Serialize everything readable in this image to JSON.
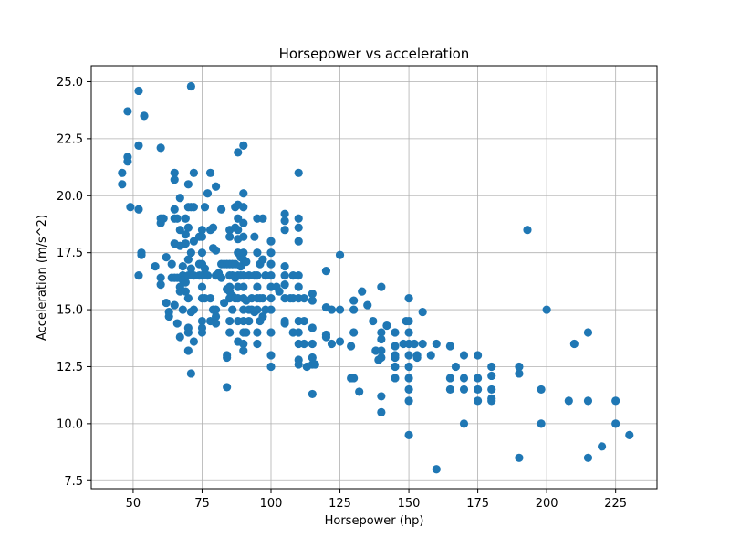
{
  "chart_data": {
    "type": "scatter",
    "title": "Horsepower vs acceleration",
    "xlabel": "Horsepower (hp)",
    "ylabel": "Acceleration (m/s^2)",
    "xlim": [
      34.8,
      240
    ],
    "ylim": [
      7.15,
      25.7
    ],
    "xticks": [
      50,
      75,
      100,
      125,
      150,
      175,
      200,
      225
    ],
    "yticks": [
      7.5,
      10.0,
      12.5,
      15.0,
      17.5,
      20.0,
      22.5,
      25.0
    ],
    "xtick_labels": [
      "50",
      "75",
      "100",
      "125",
      "150",
      "175",
      "200",
      "225"
    ],
    "ytick_labels": [
      "7.5",
      "10.0",
      "12.5",
      "15.0",
      "17.5",
      "20.0",
      "22.5",
      "25.0"
    ],
    "grid": true,
    "marker_color": "#1f77b4",
    "points": [
      [
        46,
        21.0
      ],
      [
        46,
        20.5
      ],
      [
        48,
        23.7
      ],
      [
        48,
        21.7
      ],
      [
        48,
        21.5
      ],
      [
        49,
        19.5
      ],
      [
        52,
        24.6
      ],
      [
        52,
        22.2
      ],
      [
        52,
        19.4
      ],
      [
        52,
        16.5
      ],
      [
        53,
        17.5
      ],
      [
        53,
        17.4
      ],
      [
        54,
        23.5
      ],
      [
        58,
        16.9
      ],
      [
        60,
        22.1
      ],
      [
        60,
        19.0
      ],
      [
        60,
        18.8
      ],
      [
        60,
        16.4
      ],
      [
        60,
        16.1
      ],
      [
        61,
        19.0
      ],
      [
        62,
        17.3
      ],
      [
        62,
        15.3
      ],
      [
        63,
        14.9
      ],
      [
        63,
        14.7
      ],
      [
        64,
        17.0
      ],
      [
        64,
        16.4
      ],
      [
        65,
        21.0
      ],
      [
        65,
        20.7
      ],
      [
        65,
        19.4
      ],
      [
        65,
        19.0
      ],
      [
        65,
        17.9
      ],
      [
        65,
        16.4
      ],
      [
        65,
        15.2
      ],
      [
        66,
        19.0
      ],
      [
        66,
        16.4
      ],
      [
        66,
        14.4
      ],
      [
        67,
        19.9
      ],
      [
        67,
        18.5
      ],
      [
        67,
        17.8
      ],
      [
        67,
        16.0
      ],
      [
        67,
        15.8
      ],
      [
        67,
        13.8
      ],
      [
        68,
        16.9
      ],
      [
        68,
        16.5
      ],
      [
        68,
        16.3
      ],
      [
        68,
        15.0
      ],
      [
        69,
        19.0
      ],
      [
        69,
        18.3
      ],
      [
        69,
        17.9
      ],
      [
        69,
        16.2
      ],
      [
        69,
        15.8
      ],
      [
        70,
        20.5
      ],
      [
        70,
        19.5
      ],
      [
        70,
        18.6
      ],
      [
        70,
        17.2
      ],
      [
        70,
        16.5
      ],
      [
        70,
        15.5
      ],
      [
        70,
        14.2
      ],
      [
        70,
        14.0
      ],
      [
        70,
        13.2
      ],
      [
        71,
        24.8
      ],
      [
        71,
        19.5
      ],
      [
        71,
        17.5
      ],
      [
        71,
        16.8
      ],
      [
        71,
        14.9
      ],
      [
        71,
        12.2
      ],
      [
        72,
        21.0
      ],
      [
        72,
        19.5
      ],
      [
        72,
        18.0
      ],
      [
        72,
        16.5
      ],
      [
        72,
        15.0
      ],
      [
        72,
        13.6
      ],
      [
        74,
        18.2
      ],
      [
        74,
        17.0
      ],
      [
        74,
        16.5
      ],
      [
        75,
        18.5
      ],
      [
        75,
        18.2
      ],
      [
        75,
        17.5
      ],
      [
        75,
        17.0
      ],
      [
        75,
        16.5
      ],
      [
        75,
        16.0
      ],
      [
        75,
        15.5
      ],
      [
        75,
        14.5
      ],
      [
        75,
        14.2
      ],
      [
        75,
        14.0
      ],
      [
        76,
        19.5
      ],
      [
        76,
        16.8
      ],
      [
        76,
        15.5
      ],
      [
        77,
        20.1
      ],
      [
        77,
        16.5
      ],
      [
        78,
        21.0
      ],
      [
        78,
        18.5
      ],
      [
        78,
        15.5
      ],
      [
        78,
        14.5
      ],
      [
        79,
        18.6
      ],
      [
        79,
        17.7
      ],
      [
        79,
        15.0
      ],
      [
        80,
        20.4
      ],
      [
        80,
        17.6
      ],
      [
        80,
        16.5
      ],
      [
        80,
        15.0
      ],
      [
        80,
        14.7
      ],
      [
        80,
        14.4
      ],
      [
        81,
        16.6
      ],
      [
        82,
        19.4
      ],
      [
        82,
        17.0
      ],
      [
        82,
        16.4
      ],
      [
        83,
        17.0
      ],
      [
        83,
        15.3
      ],
      [
        84,
        17.0
      ],
      [
        84,
        15.9
      ],
      [
        84,
        13.0
      ],
      [
        84,
        12.9
      ],
      [
        84,
        11.6
      ],
      [
        85,
        18.5
      ],
      [
        85,
        18.2
      ],
      [
        85,
        17.0
      ],
      [
        85,
        16.5
      ],
      [
        85,
        16.0
      ],
      [
        85,
        15.8
      ],
      [
        85,
        15.5
      ],
      [
        85,
        14.5
      ],
      [
        85,
        14.0
      ],
      [
        86,
        17.0
      ],
      [
        86,
        16.5
      ],
      [
        86,
        15.6
      ],
      [
        86,
        15.0
      ],
      [
        87,
        19.5
      ],
      [
        87,
        18.6
      ],
      [
        87,
        17.0
      ],
      [
        87,
        16.4
      ],
      [
        87,
        15.5
      ],
      [
        88,
        21.9
      ],
      [
        88,
        19.6
      ],
      [
        88,
        19.0
      ],
      [
        88,
        18.5
      ],
      [
        88,
        18.1
      ],
      [
        88,
        17.5
      ],
      [
        88,
        16.5
      ],
      [
        88,
        16.0
      ],
      [
        88,
        15.5
      ],
      [
        88,
        14.5
      ],
      [
        88,
        13.6
      ],
      [
        89,
        17.3
      ],
      [
        89,
        16.9
      ],
      [
        89,
        16.5
      ],
      [
        90,
        22.2
      ],
      [
        90,
        20.1
      ],
      [
        90,
        19.5
      ],
      [
        90,
        18.8
      ],
      [
        90,
        18.2
      ],
      [
        90,
        17.5
      ],
      [
        90,
        17.2
      ],
      [
        90,
        16.5
      ],
      [
        90,
        16.0
      ],
      [
        90,
        15.5
      ],
      [
        90,
        15.0
      ],
      [
        90,
        14.5
      ],
      [
        90,
        14.0
      ],
      [
        90,
        13.5
      ],
      [
        90,
        13.2
      ],
      [
        91,
        17.1
      ],
      [
        91,
        15.4
      ],
      [
        91,
        14.0
      ],
      [
        92,
        16.5
      ],
      [
        92,
        15.0
      ],
      [
        92,
        14.5
      ],
      [
        93,
        15.5
      ],
      [
        93,
        15.0
      ],
      [
        94,
        18.2
      ],
      [
        94,
        16.5
      ],
      [
        94,
        14.9
      ],
      [
        95,
        19.0
      ],
      [
        95,
        17.5
      ],
      [
        95,
        16.5
      ],
      [
        95,
        16.0
      ],
      [
        95,
        15.5
      ],
      [
        95,
        15.0
      ],
      [
        95,
        14.0
      ],
      [
        95,
        13.5
      ],
      [
        96,
        17.0
      ],
      [
        96,
        15.5
      ],
      [
        96,
        14.5
      ],
      [
        97,
        19.0
      ],
      [
        97,
        17.2
      ],
      [
        97,
        15.5
      ],
      [
        97,
        14.7
      ],
      [
        98,
        16.5
      ],
      [
        98,
        15.0
      ],
      [
        100,
        18.0
      ],
      [
        100,
        17.5
      ],
      [
        100,
        17.0
      ],
      [
        100,
        16.5
      ],
      [
        100,
        16.0
      ],
      [
        100,
        15.5
      ],
      [
        100,
        15.0
      ],
      [
        100,
        14.0
      ],
      [
        100,
        13.0
      ],
      [
        100,
        12.5
      ],
      [
        102,
        16.0
      ],
      [
        103,
        15.8
      ],
      [
        105,
        19.2
      ],
      [
        105,
        18.9
      ],
      [
        105,
        18.5
      ],
      [
        105,
        16.9
      ],
      [
        105,
        16.5
      ],
      [
        105,
        16.1
      ],
      [
        105,
        15.5
      ],
      [
        105,
        14.5
      ],
      [
        105,
        14.4
      ],
      [
        107,
        15.5
      ],
      [
        108,
        16.5
      ],
      [
        108,
        15.5
      ],
      [
        108,
        14.0
      ],
      [
        110,
        21.0
      ],
      [
        110,
        19.0
      ],
      [
        110,
        18.6
      ],
      [
        110,
        18.0
      ],
      [
        110,
        16.5
      ],
      [
        110,
        16.0
      ],
      [
        110,
        15.5
      ],
      [
        110,
        14.5
      ],
      [
        110,
        14.0
      ],
      [
        110,
        13.5
      ],
      [
        110,
        12.8
      ],
      [
        110,
        12.6
      ],
      [
        112,
        15.5
      ],
      [
        112,
        14.5
      ],
      [
        112,
        13.5
      ],
      [
        113,
        12.5
      ],
      [
        115,
        15.7
      ],
      [
        115,
        15.4
      ],
      [
        115,
        14.2
      ],
      [
        115,
        13.5
      ],
      [
        115,
        12.9
      ],
      [
        115,
        12.6
      ],
      [
        115,
        11.3
      ],
      [
        116,
        12.6
      ],
      [
        120,
        16.7
      ],
      [
        120,
        15.1
      ],
      [
        120,
        13.9
      ],
      [
        120,
        13.8
      ],
      [
        122,
        13.5
      ],
      [
        122,
        15.0
      ],
      [
        125,
        17.4
      ],
      [
        125,
        15.0
      ],
      [
        125,
        13.6
      ],
      [
        129,
        13.4
      ],
      [
        129,
        12.0
      ],
      [
        130,
        15.4
      ],
      [
        130,
        15.0
      ],
      [
        130,
        14.0
      ],
      [
        130,
        12.0
      ],
      [
        132,
        11.4
      ],
      [
        133,
        15.8
      ],
      [
        135,
        15.2
      ],
      [
        137,
        14.5
      ],
      [
        138,
        13.2
      ],
      [
        139,
        12.8
      ],
      [
        140,
        16.0
      ],
      [
        140,
        14.0
      ],
      [
        140,
        13.7
      ],
      [
        140,
        13.2
      ],
      [
        140,
        12.9
      ],
      [
        140,
        11.2
      ],
      [
        140,
        10.5
      ],
      [
        142,
        14.3
      ],
      [
        145,
        14.0
      ],
      [
        145,
        13.4
      ],
      [
        145,
        13.0
      ],
      [
        145,
        12.9
      ],
      [
        145,
        12.5
      ],
      [
        145,
        12.0
      ],
      [
        148,
        13.5
      ],
      [
        149,
        14.5
      ],
      [
        150,
        15.5
      ],
      [
        150,
        14.5
      ],
      [
        150,
        14.0
      ],
      [
        150,
        13.5
      ],
      [
        150,
        13.0
      ],
      [
        150,
        12.5
      ],
      [
        150,
        12.0
      ],
      [
        150,
        11.5
      ],
      [
        150,
        11.0
      ],
      [
        150,
        9.5
      ],
      [
        152,
        13.5
      ],
      [
        153,
        13.0
      ],
      [
        153,
        12.9
      ],
      [
        155,
        14.9
      ],
      [
        155,
        13.5
      ],
      [
        158,
        13.0
      ],
      [
        160,
        13.5
      ],
      [
        160,
        8.0
      ],
      [
        165,
        13.4
      ],
      [
        165,
        12.0
      ],
      [
        165,
        11.5
      ],
      [
        167,
        12.5
      ],
      [
        170,
        13.0
      ],
      [
        170,
        12.0
      ],
      [
        170,
        11.5
      ],
      [
        170,
        10.0
      ],
      [
        175,
        13.0
      ],
      [
        175,
        12.0
      ],
      [
        175,
        11.5
      ],
      [
        175,
        11.0
      ],
      [
        180,
        12.5
      ],
      [
        180,
        12.1
      ],
      [
        180,
        11.5
      ],
      [
        180,
        11.1
      ],
      [
        180,
        11.0
      ],
      [
        190,
        12.5
      ],
      [
        190,
        12.2
      ],
      [
        190,
        8.5
      ],
      [
        193,
        18.5
      ],
      [
        198,
        11.5
      ],
      [
        198,
        10.0
      ],
      [
        200,
        15.0
      ],
      [
        208,
        11.0
      ],
      [
        210,
        13.5
      ],
      [
        215,
        14.0
      ],
      [
        215,
        11.0
      ],
      [
        215,
        8.5
      ],
      [
        220,
        9.0
      ],
      [
        225,
        11.0
      ],
      [
        225,
        10.0
      ],
      [
        230,
        9.5
      ]
    ]
  }
}
